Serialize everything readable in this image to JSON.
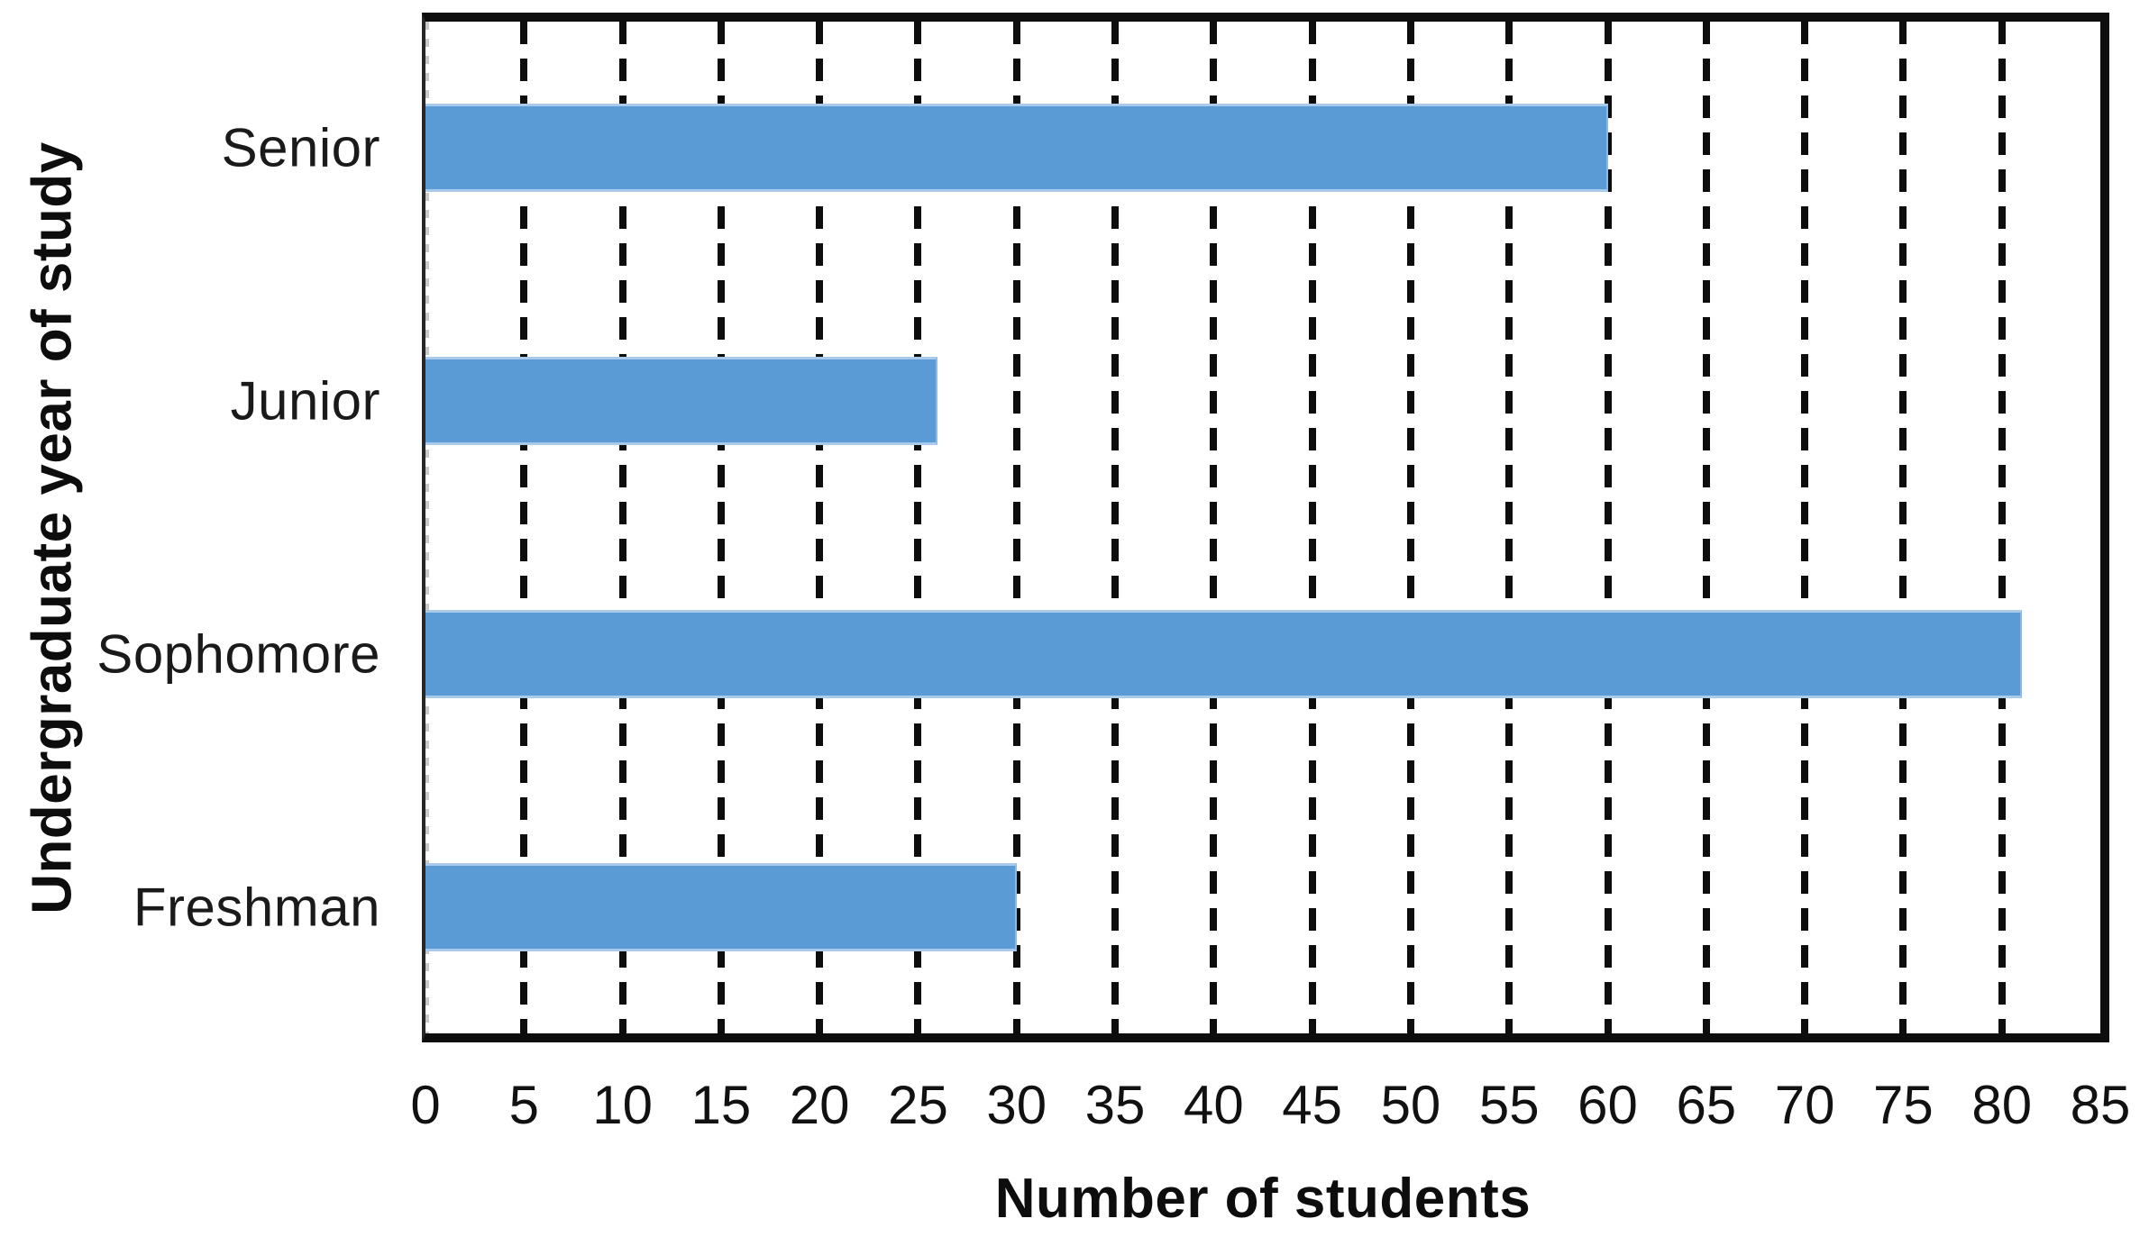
{
  "chart_data": {
    "type": "bar",
    "orientation": "horizontal",
    "title": "",
    "xlabel": "Number of students",
    "ylabel": "Undergraduate year of study",
    "categories": [
      "Senior",
      "Junior",
      "Sophomore",
      "Freshman"
    ],
    "values": [
      60,
      26,
      81,
      30
    ],
    "xlim": [
      0,
      85
    ],
    "xtick_step": 5,
    "xticks": [
      0,
      5,
      10,
      15,
      20,
      25,
      30,
      35,
      40,
      45,
      50,
      55,
      60,
      65,
      70,
      75,
      80,
      85
    ],
    "grid": "vertical-dashed",
    "legend": "none",
    "bar_color": "#5B9BD5",
    "bar_edge_color": "#A9CAEA",
    "border_color": "#0D0D0D",
    "text_color": "#111111"
  }
}
